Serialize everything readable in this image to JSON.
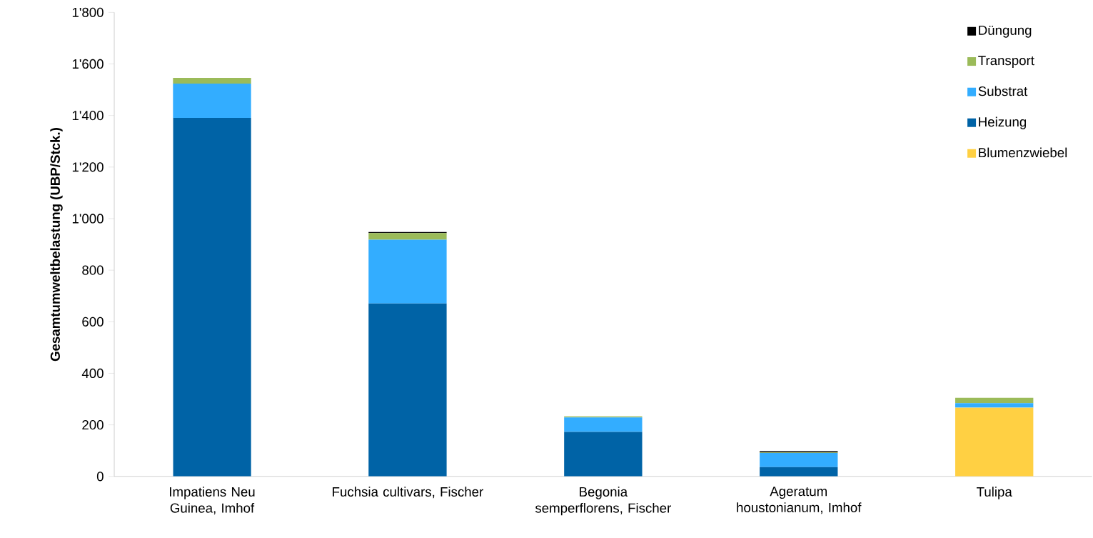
{
  "chart_data": {
    "type": "bar",
    "stacked": true,
    "ylabel": "Gesamtumweltbelastung (UBP/Stck.)",
    "categories": [
      "Impatiens Neu Guinea, Imhof",
      "Fuchsia cultivars, Fischer",
      "Begonia semperflorens, Fischer",
      "Ageratum houstonianum, Imhof",
      "Tulipa"
    ],
    "series": [
      {
        "name": "Blumenzwiebel",
        "color": "#ffd043",
        "values": [
          0,
          0,
          0,
          0,
          267
        ]
      },
      {
        "name": "Heizung",
        "color": "#0063a6",
        "values": [
          1391,
          671,
          173,
          36,
          0
        ]
      },
      {
        "name": "Substrat",
        "color": "#33adff",
        "values": [
          133,
          247,
          56,
          55,
          17
        ]
      },
      {
        "name": "Transport",
        "color": "#9bbb59",
        "values": [
          22,
          26,
          4,
          2,
          21
        ]
      },
      {
        "name": "Düngung",
        "color": "#000000",
        "values": [
          0,
          4,
          0,
          5,
          0
        ]
      }
    ],
    "ylim": [
      0,
      1800
    ],
    "yticks": [
      0,
      200,
      400,
      600,
      800,
      {
        "value": 1000,
        "label": "1'000"
      },
      {
        "value": 1200,
        "label": "1'200"
      },
      {
        "value": 1400,
        "label": "1'400"
      },
      {
        "value": 1600,
        "label": "1'600"
      },
      {
        "value": 1800,
        "label": "1'800"
      }
    ],
    "grid": false,
    "legend": "top right"
  }
}
